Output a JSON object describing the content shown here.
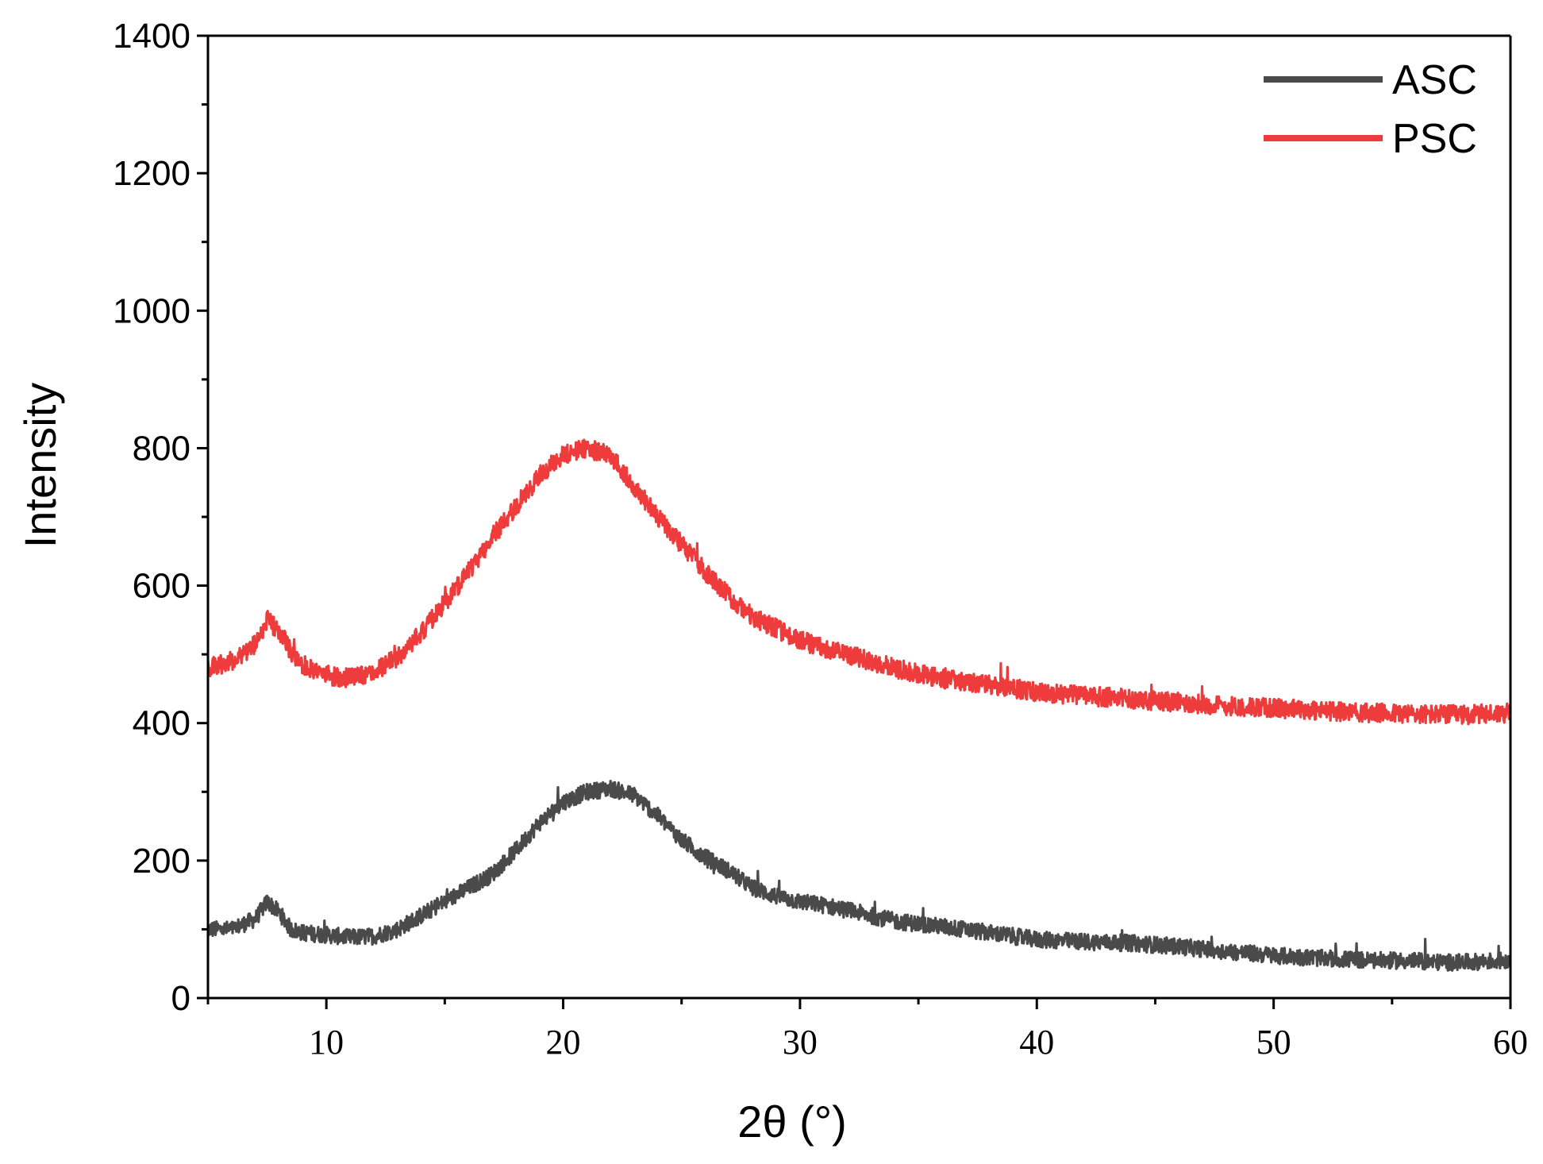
{
  "chart_data": {
    "type": "line",
    "title": "",
    "xlabel": "2θ (°)",
    "ylabel": "Intensity",
    "xlim": [
      5,
      60
    ],
    "ylim": [
      0,
      1400
    ],
    "x_ticks": [
      10,
      20,
      30,
      40,
      50,
      60
    ],
    "x_tick_labels": [
      "10",
      "20",
      "30",
      "40",
      "50",
      "60"
    ],
    "y_ticks": [
      0,
      200,
      400,
      600,
      800,
      1000,
      1200,
      1400
    ],
    "y_tick_labels": [
      "0",
      "200",
      "400",
      "600",
      "800",
      "1000",
      "1200",
      "1400"
    ],
    "legend_position": "top-right",
    "series": [
      {
        "name": "ASC",
        "color": "#4a4a4a",
        "noise": 12,
        "x": [
          5,
          6,
          7,
          7.5,
          8,
          8.5,
          9,
          10,
          11,
          12,
          13,
          14,
          15,
          16,
          17,
          18,
          19,
          20,
          21,
          22,
          22.5,
          23,
          24,
          25,
          26,
          27,
          28,
          29,
          30,
          31,
          32,
          33,
          34,
          35,
          36,
          38,
          40,
          42,
          44,
          46,
          48,
          50,
          52,
          54,
          56,
          57,
          58,
          60
        ],
        "y": [
          100,
          100,
          115,
          140,
          125,
          100,
          95,
          92,
          88,
          90,
          100,
          120,
          140,
          160,
          180,
          215,
          255,
          285,
          300,
          305,
          300,
          295,
          265,
          230,
          205,
          185,
          160,
          148,
          140,
          135,
          128,
          120,
          112,
          108,
          104,
          95,
          85,
          82,
          80,
          75,
          68,
          62,
          58,
          55,
          54,
          52,
          52,
          55
        ]
      },
      {
        "name": "PSC",
        "color": "#ee3b3b",
        "noise": 14,
        "x": [
          5,
          6,
          7,
          7.5,
          8,
          8.5,
          9,
          10,
          11,
          12,
          13,
          14,
          15,
          16,
          17,
          18,
          19,
          20,
          21,
          22,
          23,
          24,
          25,
          26,
          27,
          28,
          30,
          32,
          34,
          36,
          38,
          40,
          42,
          44,
          46,
          48,
          50,
          52,
          54,
          56,
          58,
          60
        ],
        "y": [
          480,
          490,
          515,
          550,
          535,
          505,
          485,
          470,
          465,
          475,
          495,
          530,
          575,
          620,
          670,
          715,
          760,
          790,
          800,
          790,
          745,
          700,
          660,
          620,
          585,
          555,
          520,
          500,
          480,
          465,
          455,
          445,
          440,
          435,
          430,
          425,
          422,
          418,
          415,
          413,
          412,
          415
        ]
      }
    ]
  }
}
